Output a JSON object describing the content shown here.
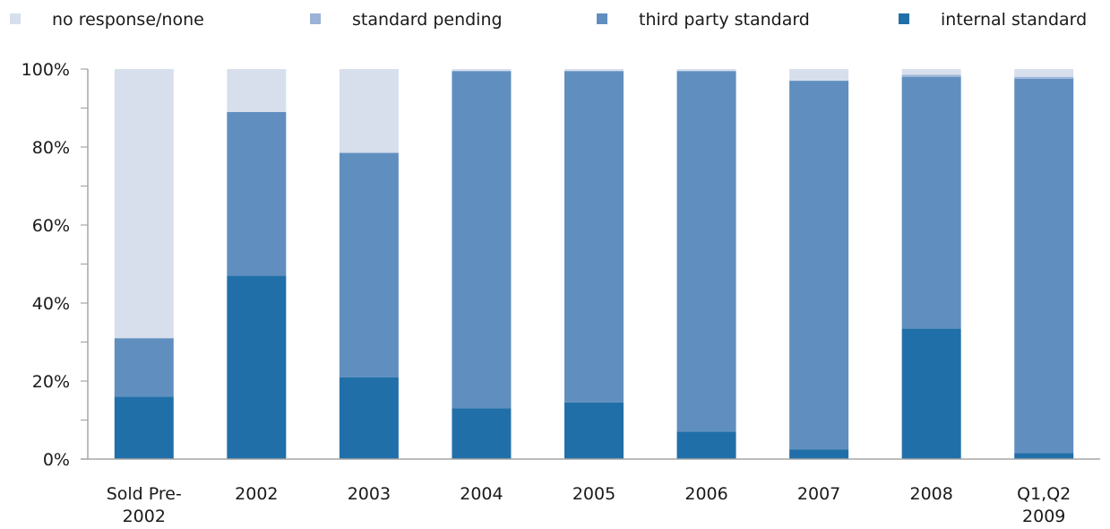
{
  "chart_data": {
    "type": "bar",
    "stacked": true,
    "categories": [
      [
        "Sold Pre-",
        "2002"
      ],
      [
        "2002"
      ],
      [
        "2003"
      ],
      [
        "2004"
      ],
      [
        "2005"
      ],
      [
        "2006"
      ],
      [
        "2007"
      ],
      [
        "2008"
      ],
      [
        "Q1,Q2",
        "2009"
      ]
    ],
    "series": [
      {
        "name": "internal standard",
        "color": "#216fa8",
        "values": [
          16,
          47,
          21,
          13,
          14.5,
          7,
          2.5,
          33.5,
          1.5
        ]
      },
      {
        "name": "third party standard",
        "color": "#608fbf",
        "values": [
          15,
          42,
          57.5,
          86.5,
          85,
          92.5,
          94.5,
          64.5,
          96
        ]
      },
      {
        "name": "standard pending",
        "color": "#9ab3d6",
        "values": [
          0,
          0,
          0,
          0,
          0,
          0,
          0,
          0.5,
          0.5
        ]
      },
      {
        "name": "no response/none",
        "color": "#d7dfed",
        "values": [
          69,
          11,
          21.5,
          0.5,
          0.5,
          0.5,
          3,
          1.5,
          2
        ]
      }
    ],
    "legend_order": [
      "no response/none",
      "standard pending",
      "third party standard",
      "internal standard"
    ],
    "legend_placement": "top",
    "y_ticks": [
      "0%",
      "20%",
      "40%",
      "60%",
      "80%",
      "100%"
    ],
    "ylim": [
      0,
      100
    ],
    "grid": false,
    "title": "",
    "xlabel": "",
    "ylabel": ""
  }
}
